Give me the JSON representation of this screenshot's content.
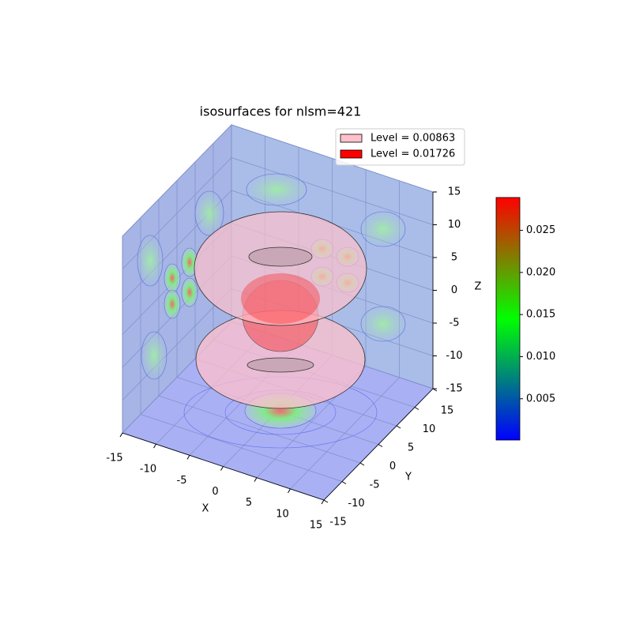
{
  "chart_data": {
    "type": "isosurface3d",
    "title": "isosurfaces for nlsm=421",
    "xlabel": "X",
    "ylabel": "Y",
    "zlabel": "Z",
    "xlim": [
      -15,
      15
    ],
    "xticks": [
      -15,
      -10,
      -5,
      0,
      5,
      10,
      15
    ],
    "ylim": [
      -15,
      15
    ],
    "yticks": [
      -15,
      -10,
      -5,
      0,
      5,
      10,
      15
    ],
    "zlim": [
      -15,
      15
    ],
    "zticks": [
      -15,
      -10,
      -5,
      0,
      5,
      10,
      15
    ],
    "series": [
      {
        "name": "Level = 0.00863",
        "color": "#ffc0cb"
      },
      {
        "name": "Level = 0.01726",
        "color": "#ff0000"
      }
    ],
    "colorbar": {
      "lim": [
        0.0001,
        0.0289
      ],
      "ticks": [
        0.005,
        {
          "value": 0.01,
          "label": "0.010"
        },
        0.015,
        {
          "value": 0.02,
          "label": "0.020"
        },
        0.025
      ],
      "colors": [
        "#0000ff",
        "#00ff00",
        "#ff0000"
      ]
    }
  }
}
